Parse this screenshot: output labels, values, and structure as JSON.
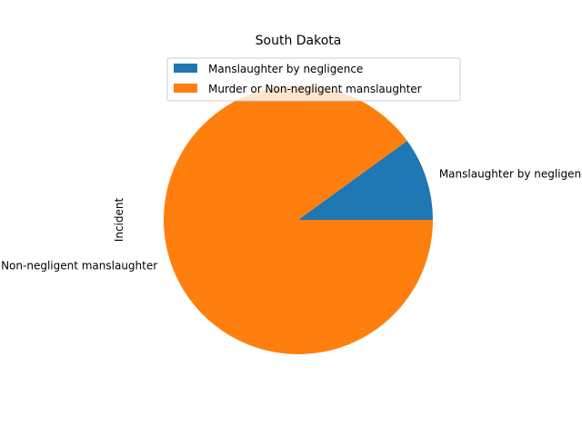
{
  "chart_data": {
    "type": "pie",
    "title": "South Dakota",
    "ylabel": "Incident",
    "slices": [
      {
        "label": "Manslaughter by negligence",
        "value": 1,
        "color": "#1f77b4"
      },
      {
        "label": "Murder or Non-negligent manslaughter",
        "value": 9,
        "color": "#ff7f0e"
      }
    ],
    "legend": {
      "position": "top-center"
    }
  }
}
